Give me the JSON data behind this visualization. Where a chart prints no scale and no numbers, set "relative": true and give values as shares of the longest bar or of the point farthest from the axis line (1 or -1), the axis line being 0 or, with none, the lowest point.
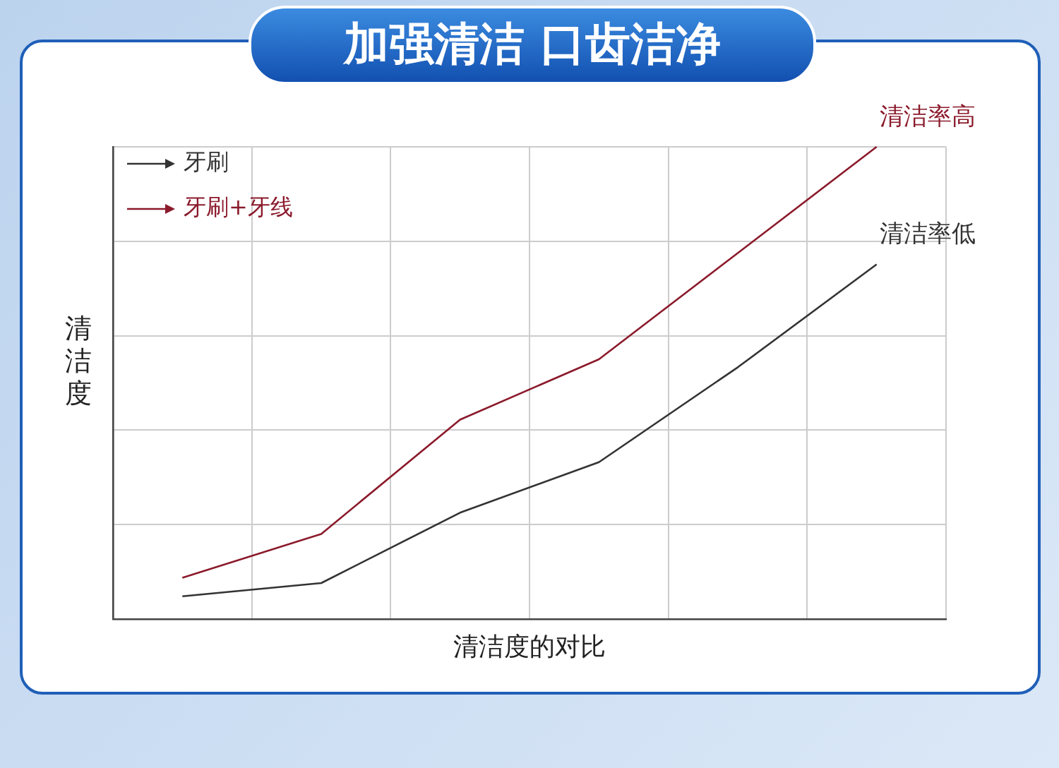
{
  "chart_data": {
    "type": "line",
    "title": "加强清洁 口齿洁净",
    "xlabel": "清洁度的对比",
    "ylabel": "清洁度",
    "relative": true,
    "grid": true,
    "legend": "top left",
    "marker": "none",
    "categories": [
      null,
      null,
      null,
      null,
      null,
      null
    ],
    "series": [
      {
        "name": "牙刷",
        "color": "#333333",
        "values": [
          0.048,
          0.076,
          0.225,
          0.332,
          0.533,
          0.751
        ]
      },
      {
        "name": "牙刷+牙线",
        "color": "#8b1a2b",
        "values": [
          0.087,
          0.18,
          0.422,
          0.55,
          0.775,
          1
        ]
      }
    ],
    "annotations": [
      "清洁率高",
      "清洁率低"
    ]
  }
}
